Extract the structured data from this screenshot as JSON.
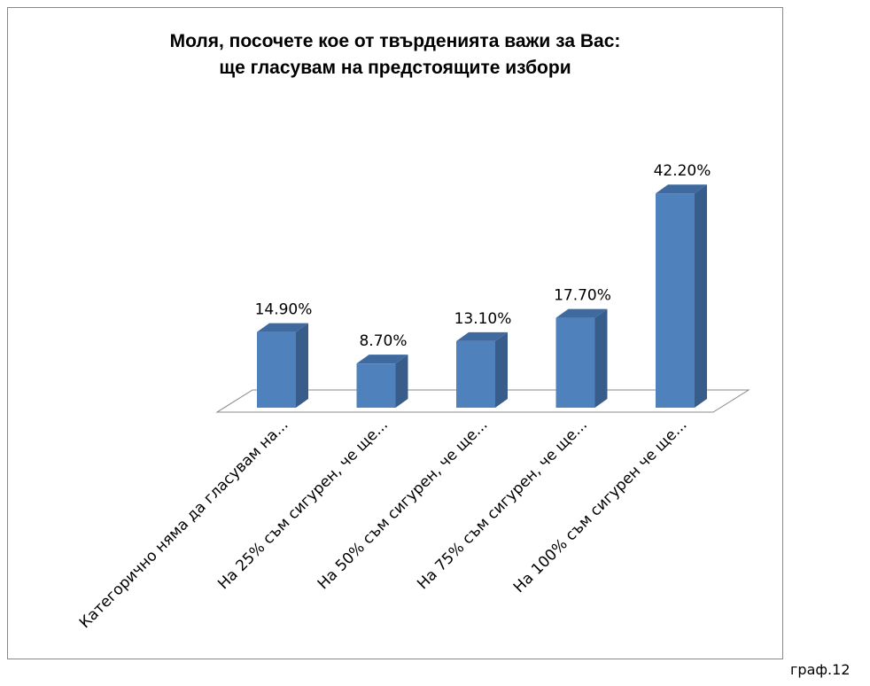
{
  "chart_data": {
    "type": "bar3d",
    "title": "Моля, посочете кое от твърденията важи за Вас:\nще гласувам на предстоящите избори",
    "categories": [
      "Категорично няма да гласувам на...",
      "На 25% съм сигурен, че ще...",
      "На 50% съм сигурен, че ще...",
      "На 75% съм сигурен, че ще...",
      "На 100% съм сигурен че ще..."
    ],
    "values": [
      14.9,
      8.7,
      13.1,
      17.7,
      42.2
    ],
    "value_labels": [
      "14.90%",
      "8.70%",
      "13.10%",
      "17.70%",
      "42.20%"
    ],
    "color": "#4f81bd"
  },
  "caption": "граф.12"
}
